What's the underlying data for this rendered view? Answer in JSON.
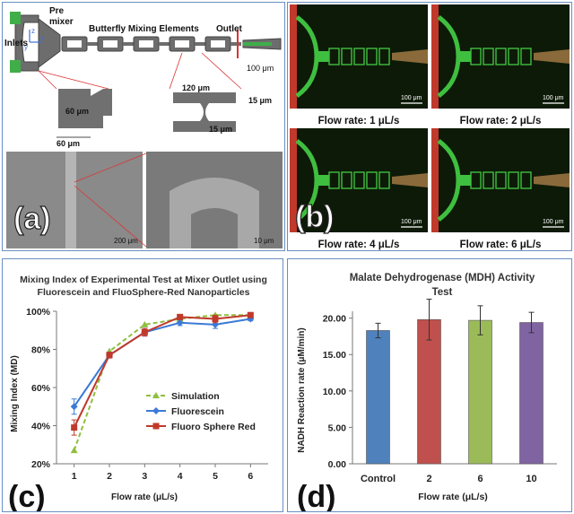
{
  "panel_a": {
    "letter": "(a)",
    "labels": {
      "pre_mixer": "Pre\nmixer",
      "pre": "Pre",
      "mixer": "mixer",
      "butterfly": "Butterfly Mixing Elements",
      "outlet": "Outlet",
      "inlets": "Inlets",
      "w100": "100 μm",
      "w120": "120 μm",
      "w15a": "15 μm",
      "w15b": "15 μm",
      "w60a": "60 μm",
      "w60b": "60 μm",
      "scale200": "200 μm",
      "scale10": "10 μm",
      "axis_z": "z",
      "axis_x": "x",
      "axis_y": "y"
    }
  },
  "panel_b": {
    "letter": "(b)",
    "scale": "100 μm",
    "captions": [
      "Flow rate: 1 μL/s",
      "Flow rate: 2 μL/s",
      "Flow rate: 4 μL/s",
      "Flow rate: 6 μL/s"
    ],
    "colors": {
      "background": "#0d1a08",
      "channel": "#3fbf3f",
      "inlet_red": "#c0392b",
      "outlet": "#8a6a3a"
    }
  },
  "panel_c": {
    "letter": "(c)",
    "chart_data": {
      "type": "line",
      "title": "Mixing Index of Experimental Test at Mixer Outlet using Fluorescein  and FluoSphere-Red Nanoparticles",
      "title_line1": "Mixing Index of Experimental Test at Mixer Outlet using",
      "title_line2": "Fluorescein  and FluoSphere-Red Nanoparticles",
      "xlabel": "Flow rate (μL/s)",
      "ylabel": "Mixing Index (MD)",
      "x": [
        1,
        2,
        3,
        4,
        5,
        6
      ],
      "x_ticks": [
        "1",
        "2",
        "3",
        "4",
        "5",
        "6"
      ],
      "ylim": [
        20,
        100
      ],
      "y_ticks": [
        "20%",
        "40%",
        "60%",
        "80%",
        "100%"
      ],
      "y_tick_values": [
        20,
        40,
        60,
        80,
        100
      ],
      "grid": false,
      "legend_position": "right-middle",
      "series": [
        {
          "name": "Simulation",
          "values": [
            27,
            79,
            93,
            96,
            98,
            98
          ],
          "color": "#8fbf3f",
          "dashed": true,
          "marker": "triangle"
        },
        {
          "name": "Fluorescein",
          "values": [
            50,
            77,
            89,
            94,
            93,
            96
          ],
          "color": "#3b7bd6",
          "dashed": false,
          "marker": "diamond",
          "errors": [
            4,
            1.5,
            2,
            1.5,
            2,
            1
          ]
        },
        {
          "name": "Fluoro Sphere Red",
          "values": [
            39,
            77,
            89,
            97,
            96,
            98
          ],
          "color": "#c0392b",
          "dashed": false,
          "marker": "square",
          "errors": [
            4,
            1.5,
            2,
            1,
            2,
            1
          ]
        }
      ]
    }
  },
  "panel_d": {
    "letter": "(d)",
    "chart_data": {
      "type": "bar",
      "title": "Malate Dehydrogenase (MDH) Activity Test",
      "title_line1": "Malate Dehydrogenase (MDH) Activity",
      "title_line2": "Test",
      "xlabel": "Flow rate (μL/s)",
      "ylabel": "NADH Reaction rate (μM/min)",
      "categories": [
        "Control",
        "2",
        "6",
        "10"
      ],
      "values": [
        18.3,
        19.8,
        19.7,
        19.4
      ],
      "errors": [
        1.0,
        2.8,
        2.0,
        1.4
      ],
      "colors": [
        "#4f81bd",
        "#c0504d",
        "#9bbb59",
        "#8064a2"
      ],
      "ylim": [
        0,
        20
      ],
      "y_ticks": [
        "0.00",
        "5.00",
        "10.00",
        "15.00",
        "20.00"
      ],
      "y_tick_values": [
        0,
        5,
        10,
        15,
        20
      ],
      "grid": false
    }
  }
}
